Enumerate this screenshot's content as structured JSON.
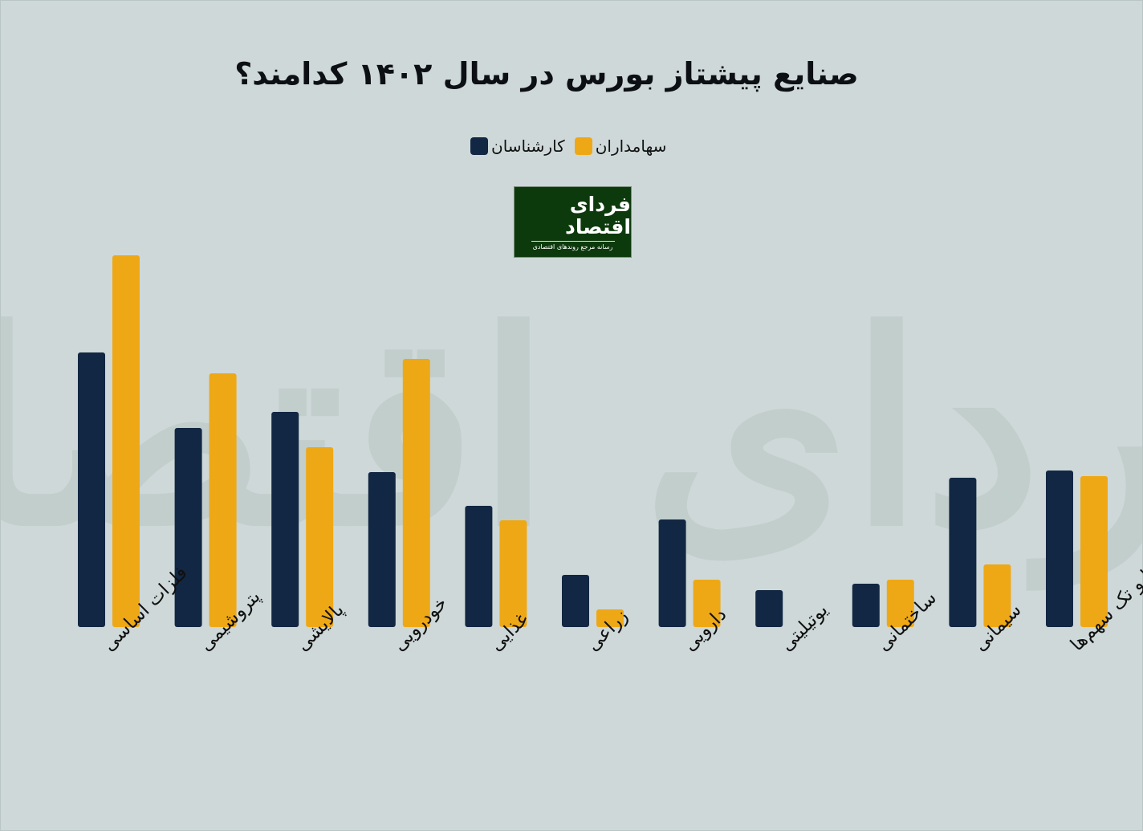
{
  "title": "صنایع پیشتاز بورس در سال ۱۴۰۲ کدامند؟",
  "logo": {
    "name": "فردای اقتصاد",
    "tagline": "رسانه مرجع روندهای اقتصادی"
  },
  "colors": {
    "experts": "#122743",
    "shareholders": "#eea816",
    "background": "#ced8d8"
  },
  "legend": [
    {
      "key": "experts",
      "label": "کارشناسان",
      "color": "#122743"
    },
    {
      "key": "shareholders",
      "label": "سهامداران",
      "color": "#eea816"
    }
  ],
  "chart_data": {
    "type": "bar",
    "title": "صنایع پیشتاز بورس در سال ۱۴۰۲ کدامند؟",
    "xlabel": "",
    "ylabel": "",
    "grid": false,
    "legend_position": "top-center",
    "y_axis_labels_shown": false,
    "categories": [
      "فلزات اساسی",
      "پتروشیمی",
      "پالایشی",
      "خودرویی",
      "غذایی",
      "زراعی",
      "دارویی",
      "یوتیلیتی",
      "ساختمانی",
      "سیمانی",
      "سایر گروه‌ها و تک سهم‌ها"
    ],
    "series": [
      {
        "name": "کارشناسان",
        "color": "#122743",
        "values": [
          342,
          248,
          268,
          193,
          151,
          65,
          134,
          46,
          54,
          186,
          195
        ]
      },
      {
        "name": "سهامداران",
        "color": "#eea816",
        "values": [
          463,
          316,
          224,
          334,
          133,
          22,
          59,
          0,
          59,
          78,
          188
        ]
      }
    ],
    "ylim": [
      0,
      470
    ]
  }
}
